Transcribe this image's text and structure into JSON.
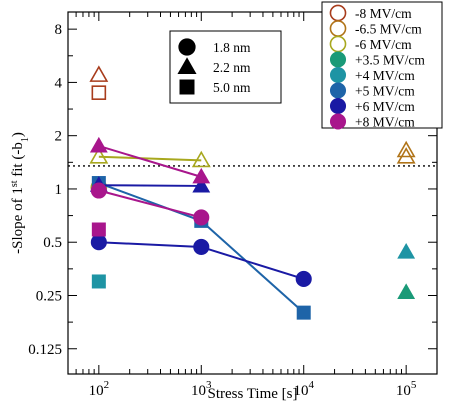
{
  "chart_data": {
    "type": "scatter",
    "xlabel": "Stress Time [s]",
    "ylabel": "-Slope of 1st fit (-b1)",
    "ylabel_parts": {
      "main": "-Slope of 1",
      "sup": "st",
      "mid": " fit (-b",
      "sub": "1",
      "end": ")"
    },
    "x_scale": "log",
    "y_scale": "log2",
    "xlim": [
      50,
      200000
    ],
    "ylim": [
      0.09,
      10
    ],
    "x_ticks": [
      {
        "value": 100,
        "base": "10",
        "exp": "2"
      },
      {
        "value": 1000,
        "base": "10",
        "exp": "3"
      },
      {
        "value": 10000,
        "base": "10",
        "exp": "4"
      },
      {
        "value": 100000,
        "base": "10",
        "exp": "5"
      }
    ],
    "y_ticks": [
      {
        "value": 0.125,
        "label": "0.125"
      },
      {
        "value": 0.25,
        "label": "0.25"
      },
      {
        "value": 0.5,
        "label": "0.5"
      },
      {
        "value": 1,
        "label": "1"
      },
      {
        "value": 2,
        "label": "2"
      },
      {
        "value": 4,
        "label": "4"
      },
      {
        "value": 8,
        "label": "8"
      }
    ],
    "reference_line": {
      "y": 1.35,
      "style": "dotted"
    },
    "marker_legend": [
      {
        "label": "1.8 nm",
        "marker": "circle"
      },
      {
        "label": "2.2 nm",
        "marker": "triangle"
      },
      {
        "label": "5.0 nm",
        "marker": "square"
      }
    ],
    "color_legend": [
      {
        "label": "-8 MV/cm",
        "color": "#a83c1c",
        "marker": "circle",
        "filled": false
      },
      {
        "label": "-6.5 MV/cm",
        "color": "#b07418",
        "marker": "circle",
        "filled": false
      },
      {
        "label": "-6 MV/cm",
        "color": "#a8a81e",
        "marker": "circle",
        "filled": false
      },
      {
        "label": "+3.5 MV/cm",
        "color": "#1a9a78",
        "marker": "circle",
        "filled": true
      },
      {
        "label": "+4 MV/cm",
        "color": "#1e94a4",
        "marker": "circle",
        "filled": true
      },
      {
        "label": "+5 MV/cm",
        "color": "#1e64a8",
        "marker": "circle",
        "filled": true
      },
      {
        "label": "+6 MV/cm",
        "color": "#1a1aa4",
        "marker": "circle",
        "filled": true
      },
      {
        "label": "+8 MV/cm",
        "color": "#a8168c",
        "marker": "circle",
        "filled": true
      }
    ],
    "series": [
      {
        "field": "-8 MV/cm",
        "thickness": "2.2 nm",
        "marker": "triangle",
        "filled": false,
        "color": "#a83c1c",
        "connected": false,
        "x": [
          100
        ],
        "y": [
          4.4
        ]
      },
      {
        "field": "-8 MV/cm",
        "thickness": "5.0 nm",
        "marker": "square",
        "filled": false,
        "color": "#a83c1c",
        "connected": false,
        "x": [
          100
        ],
        "y": [
          3.5
        ]
      },
      {
        "field": "-6.5 MV/cm",
        "thickness": "2.2 nm",
        "marker": "triangle",
        "filled": false,
        "color": "#b07418",
        "connected": false,
        "x": [
          100000,
          100000
        ],
        "y": [
          1.65,
          1.52
        ]
      },
      {
        "field": "-6 MV/cm",
        "thickness": "2.2 nm",
        "marker": "triangle",
        "filled": false,
        "color": "#a8a81e",
        "connected": true,
        "x": [
          100,
          1000
        ],
        "y": [
          1.52,
          1.45
        ]
      },
      {
        "field": "-6 MV/cm",
        "thickness": "1.8 nm",
        "marker": "circle",
        "filled": false,
        "color": "#a8a81e",
        "connected": false,
        "x": [
          100
        ],
        "y": [
          1.02
        ]
      },
      {
        "field": "+3.5 MV/cm",
        "thickness": "2.2 nm",
        "marker": "triangle",
        "filled": true,
        "color": "#1a9a78",
        "connected": false,
        "x": [
          100000
        ],
        "y": [
          0.26
        ]
      },
      {
        "field": "+4 MV/cm",
        "thickness": "2.2 nm",
        "marker": "triangle",
        "filled": true,
        "color": "#1e94a4",
        "connected": false,
        "x": [
          100000
        ],
        "y": [
          0.44
        ]
      },
      {
        "field": "+4 MV/cm",
        "thickness": "5.0 nm",
        "marker": "square",
        "filled": true,
        "color": "#1e94a4",
        "connected": false,
        "x": [
          100
        ],
        "y": [
          0.3
        ]
      },
      {
        "field": "+5 MV/cm",
        "thickness": "5.0 nm",
        "marker": "square",
        "filled": true,
        "color": "#1e64a8",
        "connected": true,
        "x": [
          100,
          1000,
          10000
        ],
        "y": [
          1.08,
          0.66,
          0.2
        ]
      },
      {
        "field": "+6 MV/cm",
        "thickness": "2.2 nm",
        "marker": "triangle",
        "filled": true,
        "color": "#1a1aa4",
        "connected": true,
        "x": [
          100,
          1000
        ],
        "y": [
          1.05,
          1.04
        ]
      },
      {
        "field": "+6 MV/cm",
        "thickness": "1.8 nm",
        "marker": "circle",
        "filled": true,
        "color": "#1a1aa4",
        "connected": true,
        "x": [
          100,
          1000,
          10000
        ],
        "y": [
          0.5,
          0.47,
          0.31
        ]
      },
      {
        "field": "+8 MV/cm",
        "thickness": "2.2 nm",
        "marker": "triangle",
        "filled": true,
        "color": "#a8168c",
        "connected": true,
        "x": [
          100,
          1000
        ],
        "y": [
          1.75,
          1.17
        ]
      },
      {
        "field": "+8 MV/cm",
        "thickness": "1.8 nm",
        "marker": "circle",
        "filled": true,
        "color": "#a8168c",
        "connected": true,
        "x": [
          100,
          1000
        ],
        "y": [
          0.98,
          0.69
        ]
      },
      {
        "field": "+8 MV/cm",
        "thickness": "5.0 nm",
        "marker": "square",
        "filled": true,
        "color": "#a8168c",
        "connected": false,
        "x": [
          100
        ],
        "y": [
          0.59
        ]
      }
    ]
  }
}
